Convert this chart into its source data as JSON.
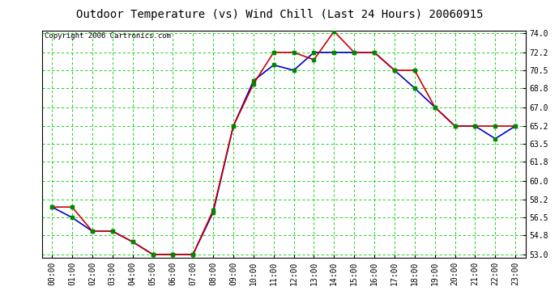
{
  "title": "Outdoor Temperature (vs) Wind Chill (Last 24 Hours) 20060915",
  "copyright": "Copyright 2006 Cartronics.com",
  "x_labels": [
    "00:00",
    "01:00",
    "02:00",
    "03:00",
    "04:00",
    "05:00",
    "06:00",
    "07:00",
    "08:00",
    "09:00",
    "10:00",
    "11:00",
    "12:00",
    "13:00",
    "14:00",
    "15:00",
    "16:00",
    "17:00",
    "18:00",
    "19:00",
    "20:00",
    "21:00",
    "22:00",
    "23:00"
  ],
  "y_ticks": [
    53.0,
    54.8,
    56.5,
    58.2,
    60.0,
    61.8,
    63.5,
    65.2,
    67.0,
    68.8,
    70.5,
    72.2,
    74.0
  ],
  "ylim": [
    53.0,
    74.0
  ],
  "temp_red": [
    57.5,
    57.5,
    55.2,
    55.2,
    54.2,
    53.0,
    53.0,
    53.0,
    57.2,
    65.2,
    69.2,
    72.2,
    72.2,
    71.5,
    74.2,
    72.2,
    72.2,
    70.5,
    70.5,
    67.0,
    65.2,
    65.2,
    65.2,
    65.2
  ],
  "wind_chill_blue": [
    57.5,
    56.5,
    55.2,
    55.2,
    54.2,
    53.0,
    53.0,
    53.0,
    57.0,
    65.2,
    69.5,
    71.0,
    70.5,
    72.2,
    72.2,
    72.2,
    72.2,
    70.5,
    68.8,
    67.0,
    65.2,
    65.2,
    64.0,
    65.2
  ],
  "bg_color": "#ffffff",
  "plot_bg_color": "#ffffff",
  "grid_color": "#00cc00",
  "grid_minor_color": "#ccffcc",
  "red_color": "#cc0000",
  "blue_color": "#0000cc",
  "green_marker_color": "#008800",
  "title_fontsize": 10,
  "copyright_fontsize": 6.5,
  "tick_fontsize": 7
}
